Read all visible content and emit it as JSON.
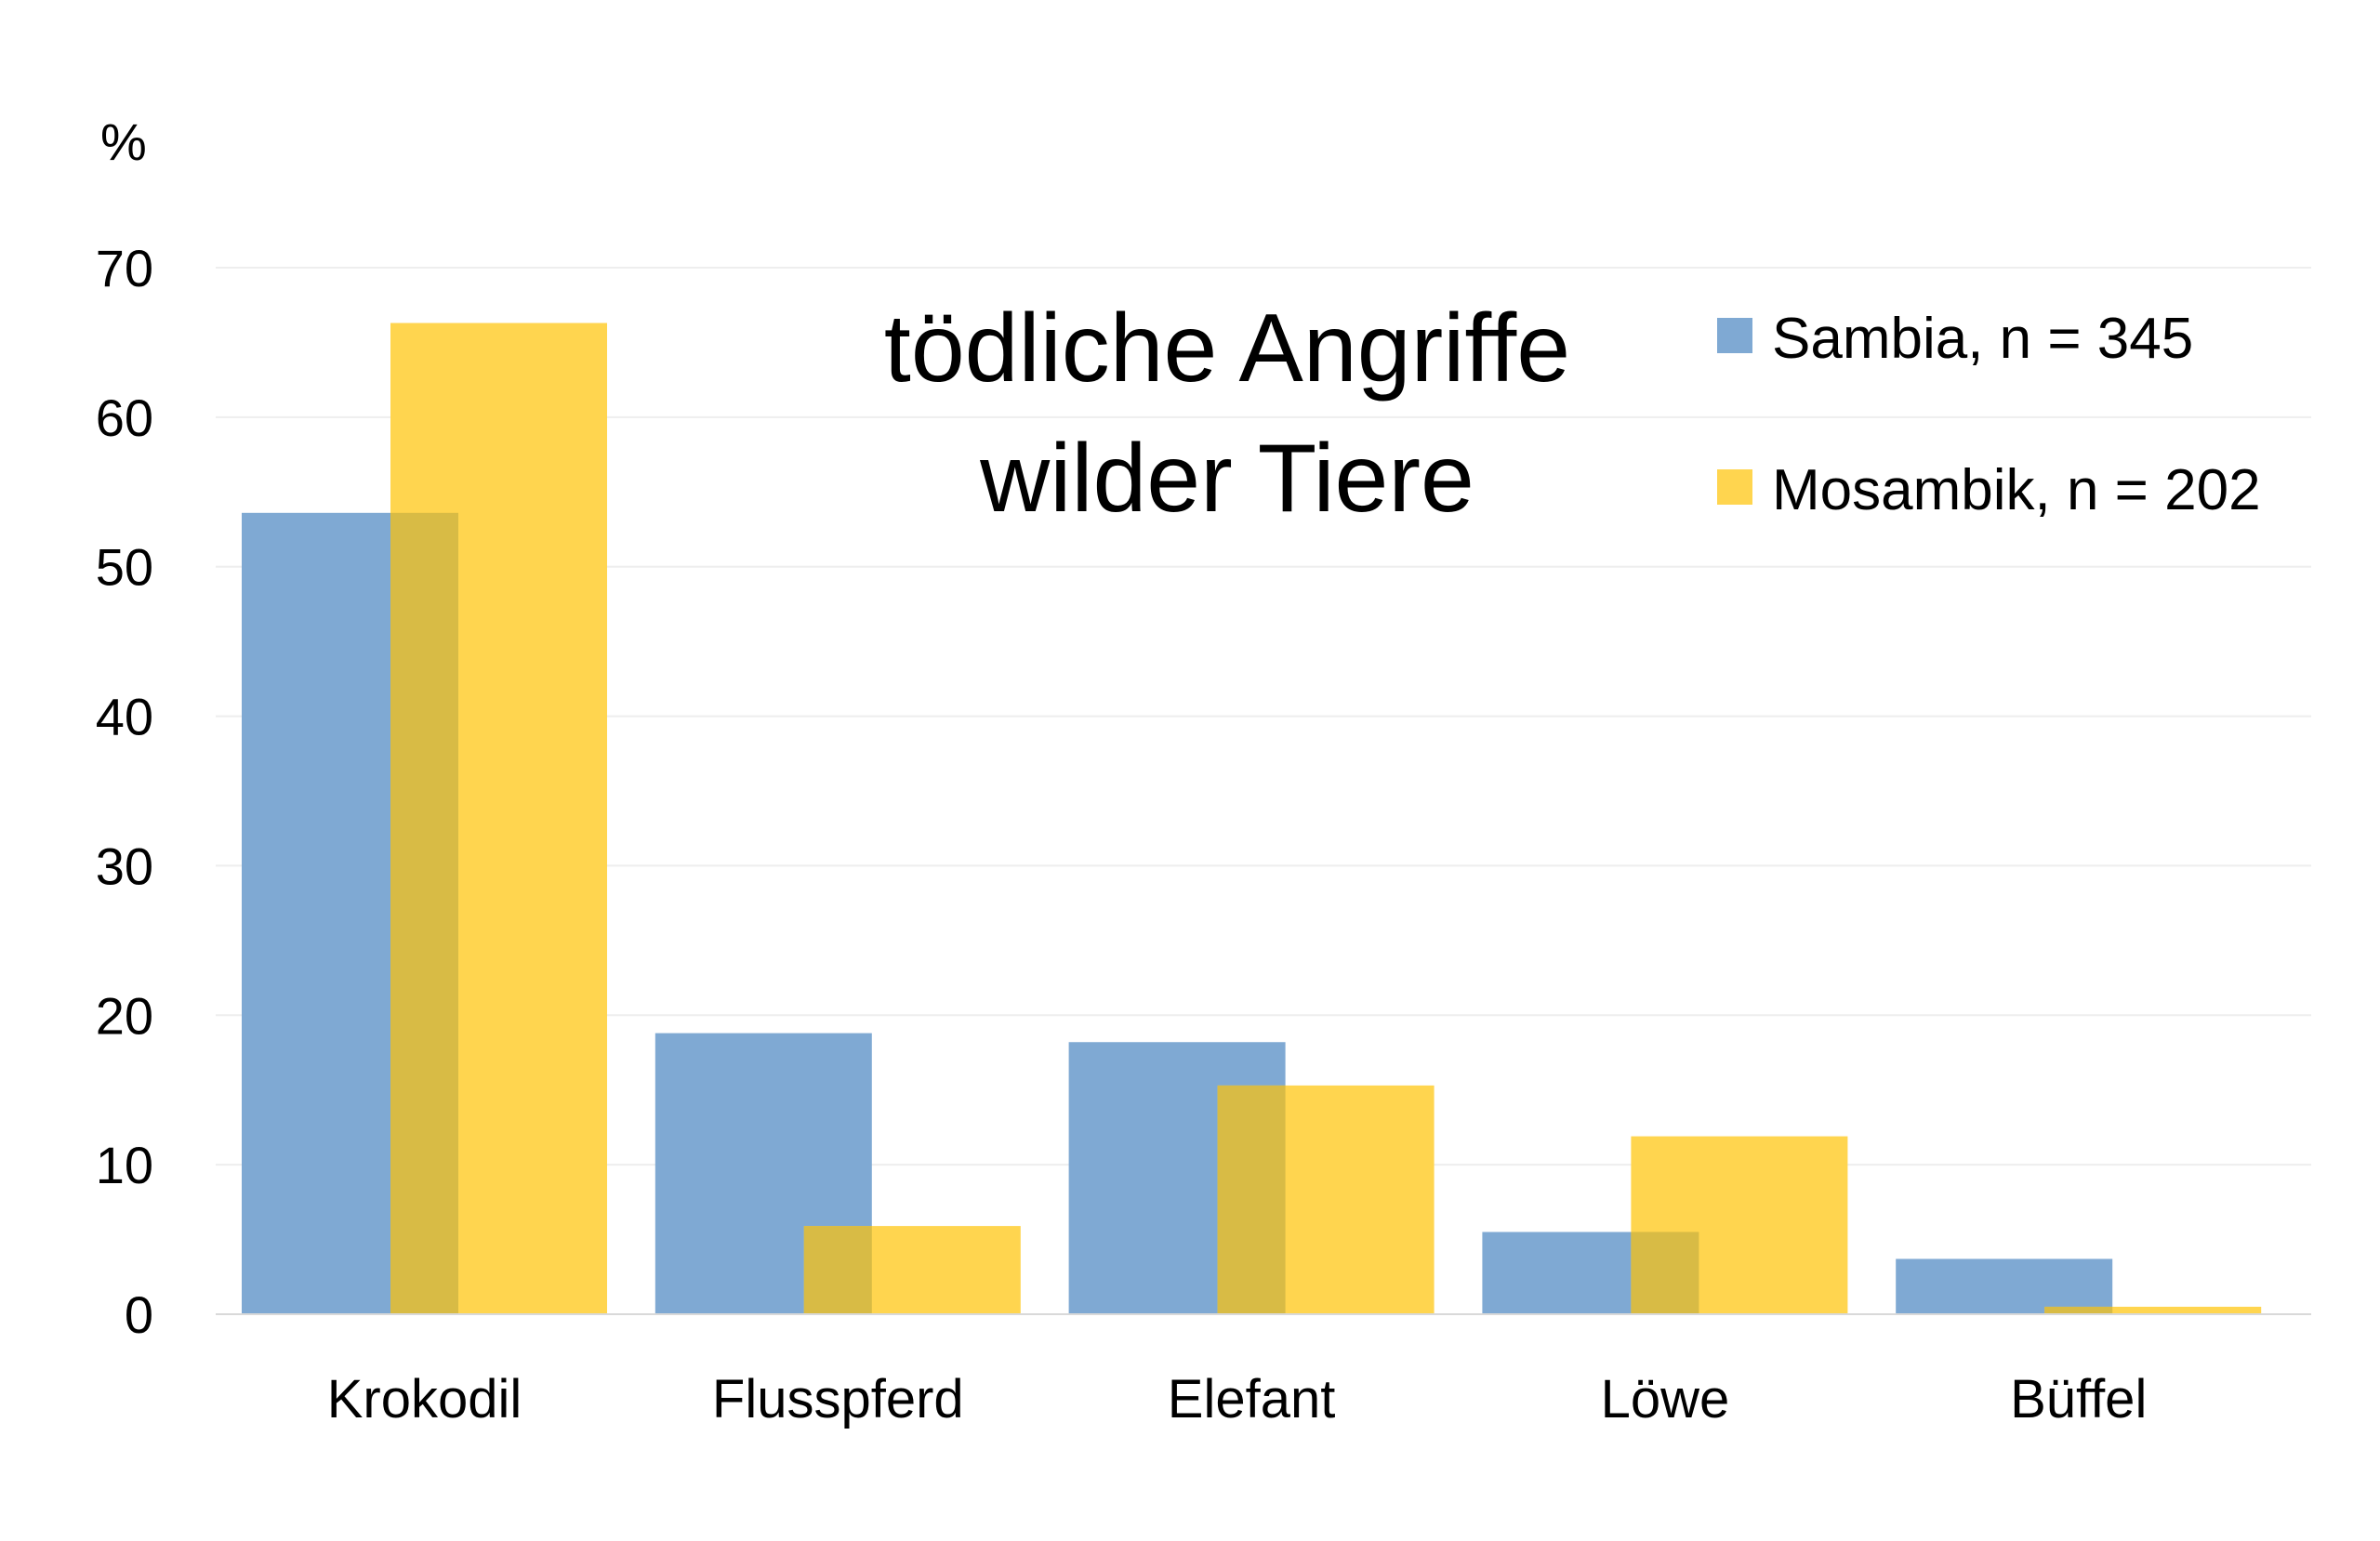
{
  "chart_data": {
    "type": "bar",
    "title_lines": [
      "tödliche Angriffe",
      "wilder Tiere"
    ],
    "ylabel": "%",
    "xlabel": "",
    "ylim": [
      0,
      70
    ],
    "yticks": [
      0,
      10,
      20,
      30,
      40,
      50,
      60,
      70
    ],
    "grid": true,
    "legend_position": "top-right",
    "categories": [
      "Krokodil",
      "Flusspferd",
      "Elefant",
      "Löwe",
      "Büffel"
    ],
    "series": [
      {
        "name": "Sambia, n = 345",
        "color": "#7fa9d3",
        "values": [
          53.6,
          18.8,
          18.2,
          5.5,
          3.7
        ]
      },
      {
        "name": "Mosambik, n = 202",
        "color": "#ffd54f",
        "values": [
          66.3,
          5.9,
          15.3,
          11.9,
          0.5
        ]
      }
    ],
    "overlap_color": "#d8bb45"
  }
}
